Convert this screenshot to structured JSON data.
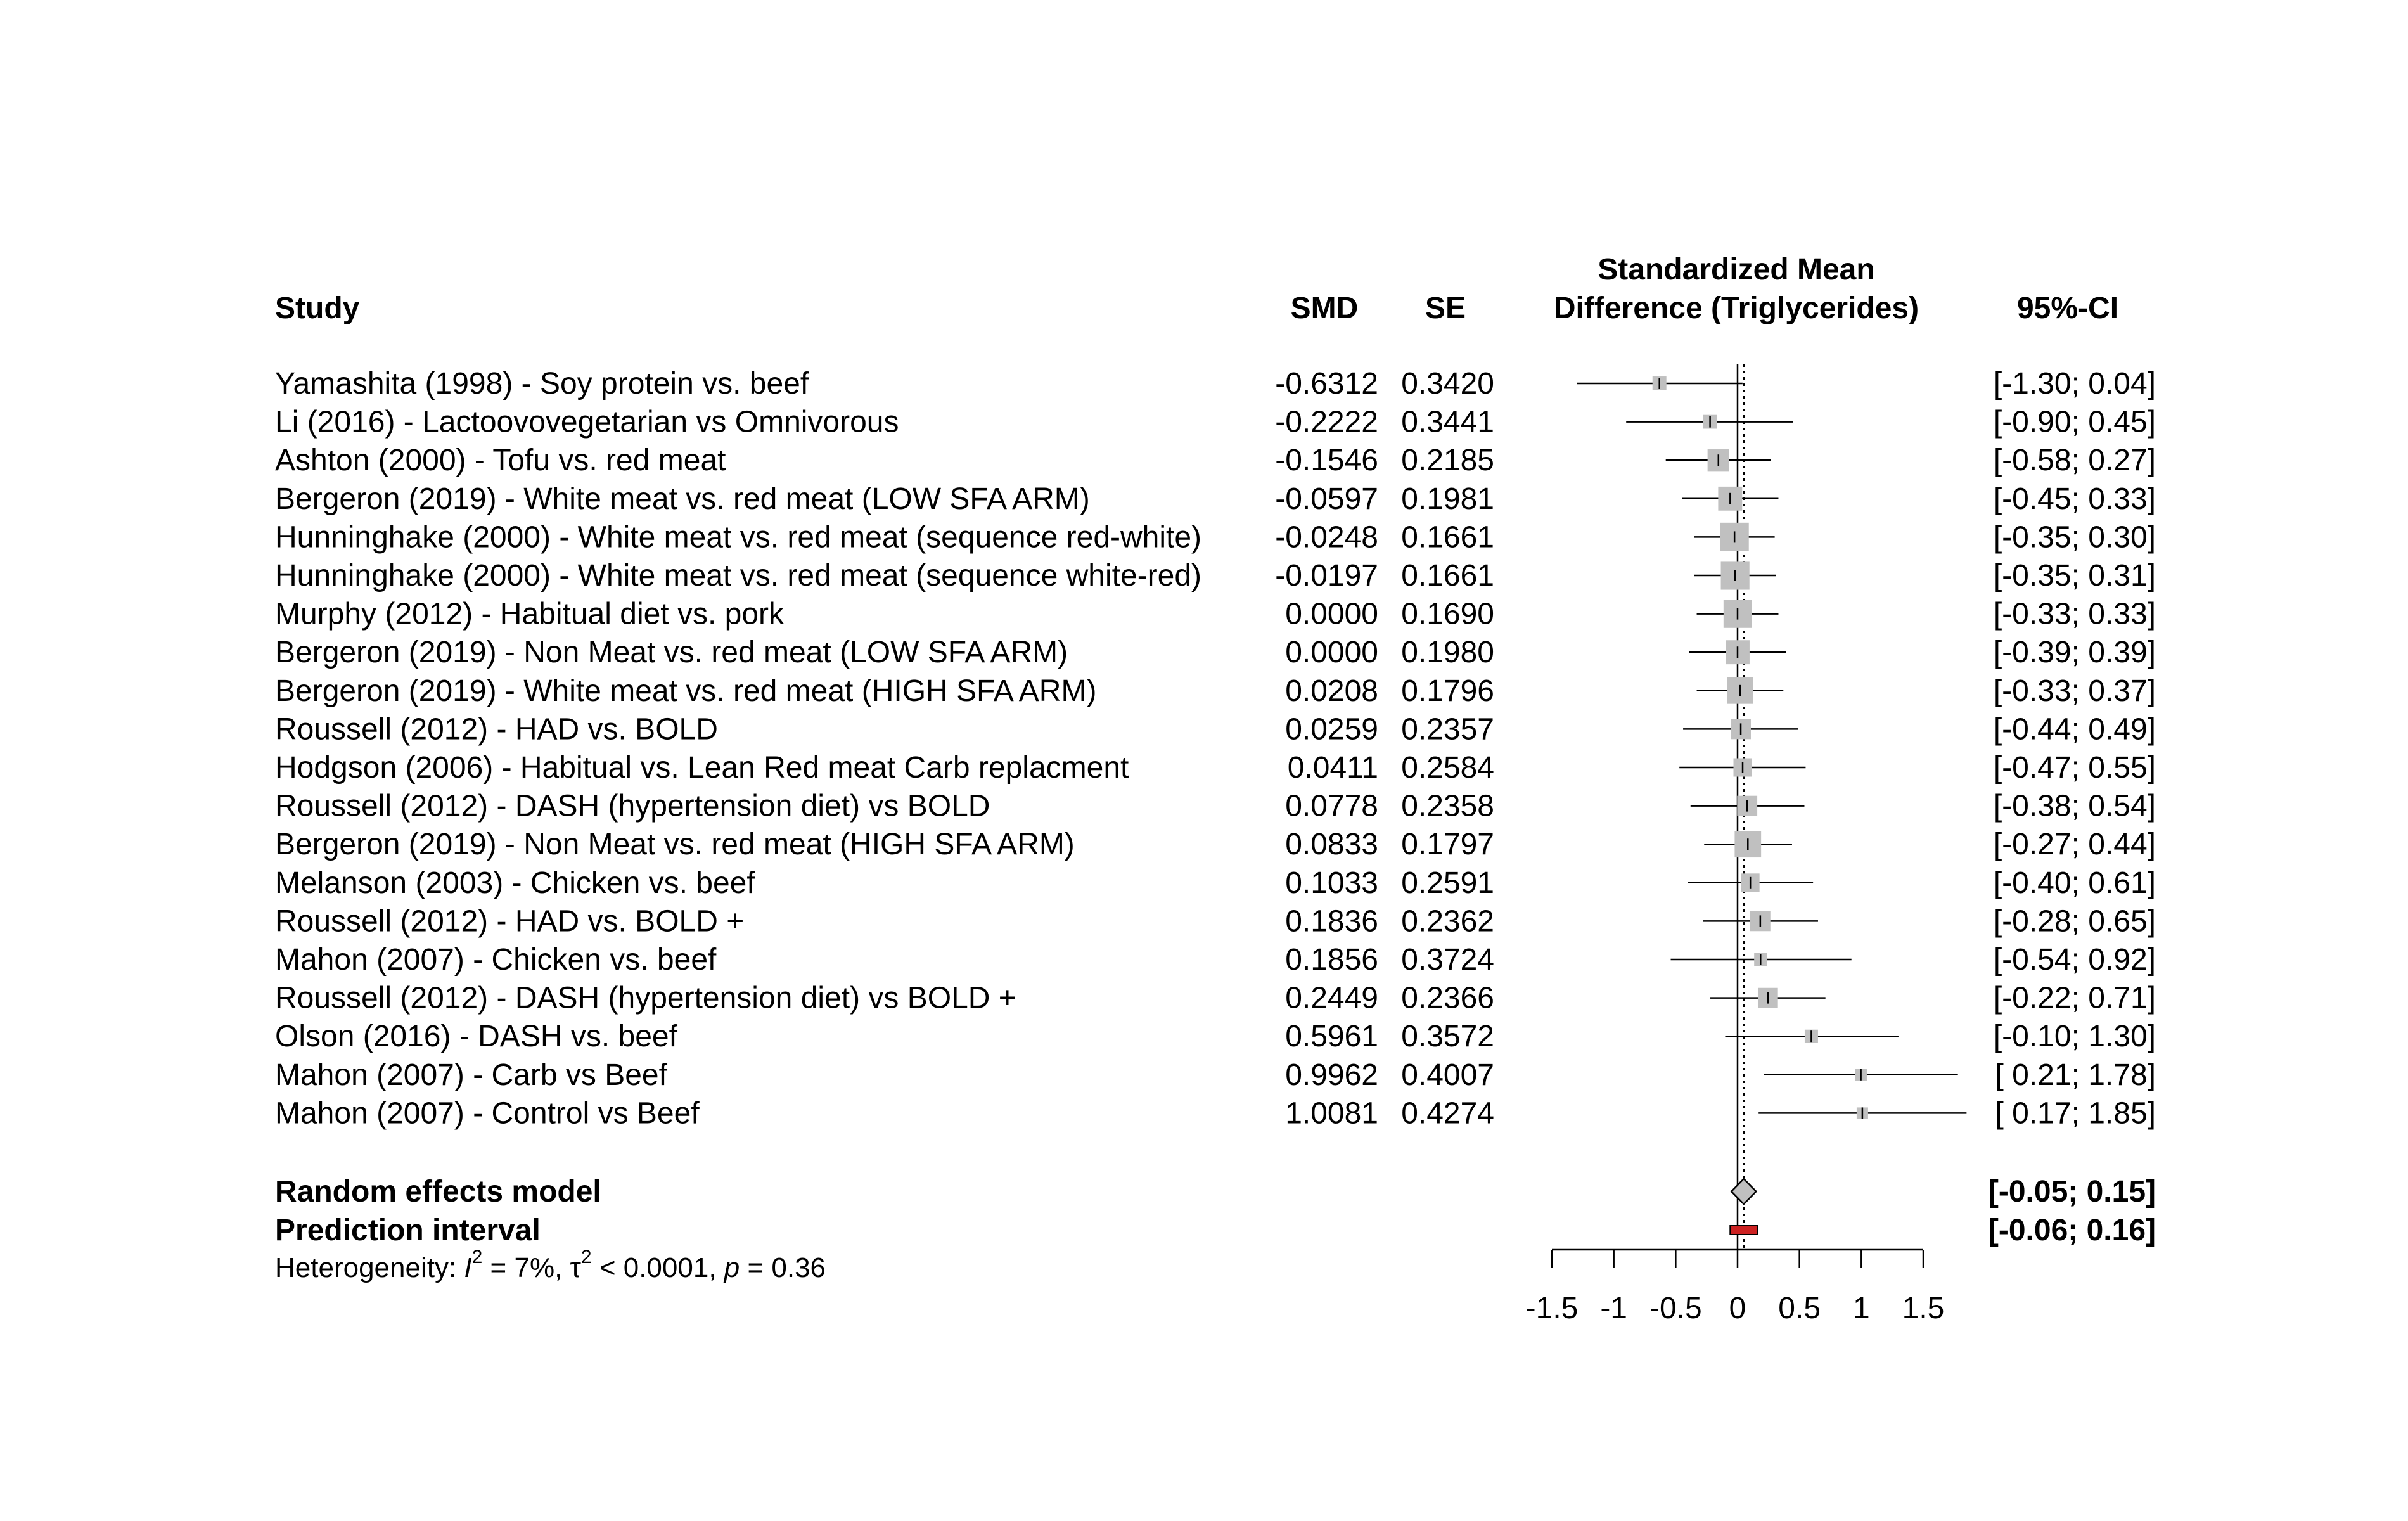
{
  "chart_data": {
    "type": "forest",
    "headers": {
      "study": "Study",
      "smd": "SMD",
      "se": "SE",
      "plot_title_line1": "Standardized Mean",
      "plot_title_line2": "Difference (Triglycerides)",
      "ci": "95%-CI"
    },
    "studies": [
      {
        "study": "Yamashita (1998) - Soy protein vs. beef",
        "smd": "-0.6312",
        "se": "0.3420",
        "ci": "[-1.30; 0.04]",
        "est": -0.6312,
        "lo": -1.3,
        "hi": 0.04
      },
      {
        "study": "Li (2016) - Lactoovovegetarian vs Omnivorous",
        "smd": "-0.2222",
        "se": "0.3441",
        "ci": "[-0.90; 0.45]",
        "est": -0.2222,
        "lo": -0.9,
        "hi": 0.45
      },
      {
        "study": "Ashton (2000) - Tofu vs. red meat",
        "smd": "-0.1546",
        "se": "0.2185",
        "ci": "[-0.58; 0.27]",
        "est": -0.1546,
        "lo": -0.58,
        "hi": 0.27
      },
      {
        "study": "Bergeron (2019) - White meat vs. red meat   (LOW SFA ARM)",
        "smd": "-0.0597",
        "se": "0.1981",
        "ci": "[-0.45; 0.33]",
        "est": -0.0597,
        "lo": -0.45,
        "hi": 0.33
      },
      {
        "study": "Hunninghake (2000) - White meat vs. red meat (sequence red-white)",
        "smd": "-0.0248",
        "se": "0.1661",
        "ci": "[-0.35; 0.30]",
        "est": -0.0248,
        "lo": -0.35,
        "hi": 0.3
      },
      {
        "study": "Hunninghake (2000) - White meat vs. red meat (sequence white-red)",
        "smd": "-0.0197",
        "se": "0.1661",
        "ci": "[-0.35; 0.31]",
        "est": -0.0197,
        "lo": -0.35,
        "hi": 0.31
      },
      {
        "study": "Murphy (2012) - Habitual diet vs. pork",
        "smd": "0.0000",
        "se": "0.1690",
        "ci": "[-0.33; 0.33]",
        "est": 0.0,
        "lo": -0.33,
        "hi": 0.33
      },
      {
        "study": "Bergeron (2019) - Non Meat vs. red meat   (LOW SFA ARM)",
        "smd": "0.0000",
        "se": "0.1980",
        "ci": "[-0.39; 0.39]",
        "est": 0.0,
        "lo": -0.39,
        "hi": 0.39
      },
      {
        "study": "Bergeron (2019) - White meat vs. red meat   (HIGH SFA ARM)",
        "smd": "0.0208",
        "se": "0.1796",
        "ci": "[-0.33; 0.37]",
        "est": 0.0208,
        "lo": -0.33,
        "hi": 0.37
      },
      {
        "study": "Roussell (2012) - HAD vs. BOLD",
        "smd": "0.0259",
        "se": "0.2357",
        "ci": "[-0.44; 0.49]",
        "est": 0.0259,
        "lo": -0.44,
        "hi": 0.49
      },
      {
        "study": "Hodgson (2006) - Habitual vs. Lean Red meat Carb replacment",
        "smd": "0.0411",
        "se": "0.2584",
        "ci": "[-0.47; 0.55]",
        "est": 0.0411,
        "lo": -0.47,
        "hi": 0.55
      },
      {
        "study": "Roussell (2012) - DASH (hypertension diet) vs BOLD",
        "smd": "0.0778",
        "se": "0.2358",
        "ci": "[-0.38; 0.54]",
        "est": 0.0778,
        "lo": -0.38,
        "hi": 0.54
      },
      {
        "study": "Bergeron (2019) - Non Meat vs. red meat   (HIGH SFA ARM)",
        "smd": "0.0833",
        "se": "0.1797",
        "ci": "[-0.27; 0.44]",
        "est": 0.0833,
        "lo": -0.27,
        "hi": 0.44
      },
      {
        "study": "Melanson (2003) - Chicken vs. beef",
        "smd": "0.1033",
        "se": "0.2591",
        "ci": "[-0.40; 0.61]",
        "est": 0.1033,
        "lo": -0.4,
        "hi": 0.61
      },
      {
        "study": "Roussell (2012) - HAD vs. BOLD +",
        "smd": "0.1836",
        "se": "0.2362",
        "ci": "[-0.28; 0.65]",
        "est": 0.1836,
        "lo": -0.28,
        "hi": 0.65
      },
      {
        "study": "Mahon (2007) - Chicken vs. beef",
        "smd": "0.1856",
        "se": "0.3724",
        "ci": "[-0.54; 0.92]",
        "est": 0.1856,
        "lo": -0.54,
        "hi": 0.92
      },
      {
        "study": "Roussell (2012) - DASH (hypertension diet) vs BOLD +",
        "smd": "0.2449",
        "se": "0.2366",
        "ci": "[-0.22; 0.71]",
        "est": 0.2449,
        "lo": -0.22,
        "hi": 0.71
      },
      {
        "study": "Olson (2016) - DASH vs. beef",
        "smd": "0.5961",
        "se": "0.3572",
        "ci": "[-0.10; 1.30]",
        "est": 0.5961,
        "lo": -0.1,
        "hi": 1.3
      },
      {
        "study": "Mahon (2007) - Carb vs Beef",
        "smd": "0.9962",
        "se": "0.4007",
        "ci": "[ 0.21; 1.78]",
        "est": 0.9962,
        "lo": 0.21,
        "hi": 1.78
      },
      {
        "study": "Mahon (2007) - Control vs Beef",
        "smd": "1.0081",
        "se": "0.4274",
        "ci": "[ 0.17; 1.85]",
        "est": 1.0081,
        "lo": 0.17,
        "hi": 1.85
      }
    ],
    "random_effects": {
      "label": "Random effects model",
      "ci": "[-0.05; 0.15]",
      "est": 0.05,
      "lo": -0.05,
      "hi": 0.15
    },
    "prediction_interval": {
      "label": "Prediction interval",
      "ci": "[-0.06; 0.16]",
      "lo": -0.06,
      "hi": 0.16
    },
    "heterogeneity": {
      "prefix": "Heterogeneity: ",
      "i2_symbol": "I",
      "i2_value": " = 7%, ",
      "tau2_symbol": "τ",
      "tau2_value": " < 0.0001, ",
      "p_symbol": "p",
      "p_value": " = 0.36"
    },
    "xaxis": {
      "ticks": [
        -1.5,
        -1,
        -0.5,
        0,
        0.5,
        1,
        1.5
      ],
      "tick_labels": [
        "-1.5",
        "-1",
        "-0.5",
        "0",
        "0.5",
        "1",
        "1.5"
      ],
      "xlim": [
        -1.5,
        1.5
      ]
    },
    "colors": {
      "square": "#c0c0c0",
      "diamond": "#c0c0c0",
      "prediction": "#cc2222",
      "line": "#000000"
    }
  }
}
